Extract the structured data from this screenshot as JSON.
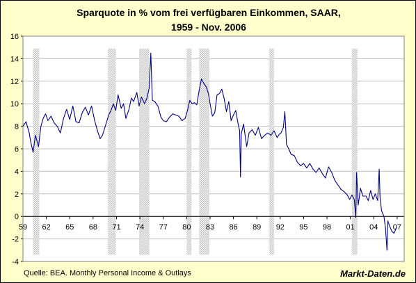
{
  "chart_data": {
    "type": "line",
    "title_line1": "Sparquote in % vom frei verfügbaren Einkommen, SAAR,",
    "title_line2": "1959 - Nov. 2006",
    "xlabel": "",
    "ylabel": "",
    "xlim": [
      1959,
      2007.9
    ],
    "ylim": [
      -4,
      16
    ],
    "y_ticks": [
      -4,
      -2,
      0,
      2,
      4,
      6,
      8,
      10,
      12,
      14,
      16
    ],
    "x_ticks": [
      {
        "year": 1959,
        "label": "59"
      },
      {
        "year": 1962,
        "label": "62"
      },
      {
        "year": 1965,
        "label": "65"
      },
      {
        "year": 1968,
        "label": "68"
      },
      {
        "year": 1971,
        "label": "71"
      },
      {
        "year": 1974,
        "label": "74"
      },
      {
        "year": 1977,
        "label": "77"
      },
      {
        "year": 1980,
        "label": "80"
      },
      {
        "year": 1983,
        "label": "83"
      },
      {
        "year": 1986,
        "label": "86"
      },
      {
        "year": 1989,
        "label": "89"
      },
      {
        "year": 1992,
        "label": "92"
      },
      {
        "year": 1995,
        "label": "95"
      },
      {
        "year": 1998,
        "label": "98"
      },
      {
        "year": 2001,
        "label": "01"
      },
      {
        "year": 2004,
        "label": "04"
      },
      {
        "year": 2007,
        "label": "07"
      }
    ],
    "grid": true,
    "recessions": [
      [
        1960.3,
        1961.1
      ],
      [
        1969.9,
        1970.9
      ],
      [
        1973.9,
        1975.2
      ],
      [
        1980.0,
        1980.6
      ],
      [
        1981.6,
        1982.9
      ],
      [
        1990.6,
        1991.2
      ],
      [
        2001.2,
        2001.9
      ]
    ],
    "series": [
      {
        "color": "#000080",
        "points": [
          [
            1959.0,
            8.0
          ],
          [
            1959.4,
            8.4
          ],
          [
            1959.8,
            7.4
          ],
          [
            1960.0,
            6.6
          ],
          [
            1960.3,
            5.7
          ],
          [
            1960.6,
            7.2
          ],
          [
            1961.0,
            6.2
          ],
          [
            1961.3,
            8.0
          ],
          [
            1961.6,
            8.7
          ],
          [
            1961.9,
            9.1
          ],
          [
            1962.2,
            8.5
          ],
          [
            1962.6,
            8.9
          ],
          [
            1963.0,
            8.3
          ],
          [
            1963.4,
            8.0
          ],
          [
            1963.8,
            7.4
          ],
          [
            1964.2,
            8.7
          ],
          [
            1964.6,
            9.5
          ],
          [
            1965.0,
            8.6
          ],
          [
            1965.4,
            9.8
          ],
          [
            1965.8,
            8.4
          ],
          [
            1966.2,
            8.3
          ],
          [
            1966.6,
            9.2
          ],
          [
            1967.0,
            9.7
          ],
          [
            1967.4,
            9.0
          ],
          [
            1967.8,
            9.8
          ],
          [
            1968.2,
            8.5
          ],
          [
            1968.6,
            7.5
          ],
          [
            1968.9,
            6.9
          ],
          [
            1969.2,
            7.2
          ],
          [
            1969.6,
            8.1
          ],
          [
            1970.0,
            9.0
          ],
          [
            1970.3,
            9.4
          ],
          [
            1970.6,
            10.0
          ],
          [
            1970.9,
            9.4
          ],
          [
            1971.2,
            10.8
          ],
          [
            1971.6,
            9.6
          ],
          [
            1971.9,
            10.0
          ],
          [
            1972.2,
            8.7
          ],
          [
            1972.6,
            9.5
          ],
          [
            1972.9,
            10.5
          ],
          [
            1973.2,
            10.2
          ],
          [
            1973.6,
            11.0
          ],
          [
            1973.9,
            9.8
          ],
          [
            1974.2,
            10.6
          ],
          [
            1974.6,
            10.0
          ],
          [
            1974.9,
            10.5
          ],
          [
            1975.2,
            11.4
          ],
          [
            1975.4,
            14.5
          ],
          [
            1975.6,
            10.3
          ],
          [
            1975.9,
            10.2
          ],
          [
            1976.3,
            9.8
          ],
          [
            1976.7,
            8.8
          ],
          [
            1977.0,
            8.5
          ],
          [
            1977.4,
            8.4
          ],
          [
            1977.8,
            8.8
          ],
          [
            1978.2,
            9.1
          ],
          [
            1978.6,
            9.0
          ],
          [
            1979.0,
            8.9
          ],
          [
            1979.4,
            8.5
          ],
          [
            1979.8,
            8.7
          ],
          [
            1980.1,
            9.4
          ],
          [
            1980.4,
            10.3
          ],
          [
            1980.7,
            10.0
          ],
          [
            1981.0,
            10.1
          ],
          [
            1981.3,
            9.9
          ],
          [
            1981.6,
            11.2
          ],
          [
            1981.9,
            12.2
          ],
          [
            1982.2,
            11.8
          ],
          [
            1982.5,
            11.5
          ],
          [
            1982.8,
            10.9
          ],
          [
            1983.0,
            10.0
          ],
          [
            1983.3,
            8.9
          ],
          [
            1983.6,
            9.2
          ],
          [
            1983.9,
            10.8
          ],
          [
            1984.2,
            10.9
          ],
          [
            1984.5,
            11.3
          ],
          [
            1984.8,
            10.5
          ],
          [
            1985.1,
            9.3
          ],
          [
            1985.4,
            10.2
          ],
          [
            1985.7,
            8.5
          ],
          [
            1986.0,
            9.0
          ],
          [
            1986.3,
            9.4
          ],
          [
            1986.6,
            8.2
          ],
          [
            1986.8,
            7.6
          ],
          [
            1986.9,
            3.5
          ],
          [
            1987.0,
            7.3
          ],
          [
            1987.3,
            8.2
          ],
          [
            1987.7,
            6.2
          ],
          [
            1988.0,
            7.4
          ],
          [
            1988.4,
            7.7
          ],
          [
            1988.8,
            7.2
          ],
          [
            1989.2,
            7.9
          ],
          [
            1989.6,
            6.9
          ],
          [
            1990.0,
            7.2
          ],
          [
            1990.4,
            7.4
          ],
          [
            1990.8,
            7.2
          ],
          [
            1991.2,
            7.6
          ],
          [
            1991.6,
            7.0
          ],
          [
            1991.9,
            7.3
          ],
          [
            1992.1,
            7.4
          ],
          [
            1992.4,
            7.9
          ],
          [
            1992.6,
            9.3
          ],
          [
            1992.8,
            6.4
          ],
          [
            1993.1,
            6.0
          ],
          [
            1993.4,
            5.5
          ],
          [
            1993.8,
            5.4
          ],
          [
            1994.2,
            4.8
          ],
          [
            1994.6,
            4.5
          ],
          [
            1995.0,
            4.7
          ],
          [
            1995.4,
            4.3
          ],
          [
            1995.8,
            4.7
          ],
          [
            1996.2,
            4.2
          ],
          [
            1996.6,
            3.9
          ],
          [
            1997.0,
            4.3
          ],
          [
            1997.4,
            3.8
          ],
          [
            1997.8,
            3.4
          ],
          [
            1998.2,
            4.4
          ],
          [
            1998.6,
            3.9
          ],
          [
            1999.0,
            3.2
          ],
          [
            1999.4,
            2.8
          ],
          [
            1999.8,
            2.4
          ],
          [
            2000.2,
            2.2
          ],
          [
            2000.6,
            1.9
          ],
          [
            2000.9,
            1.5
          ],
          [
            2001.2,
            1.9
          ],
          [
            2001.5,
            1.5
          ],
          [
            2001.7,
            -0.1
          ],
          [
            2001.8,
            3.9
          ],
          [
            2002.0,
            1.0
          ],
          [
            2002.3,
            2.5
          ],
          [
            2002.6,
            1.8
          ],
          [
            2003.0,
            1.8
          ],
          [
            2003.3,
            1.4
          ],
          [
            2003.6,
            2.3
          ],
          [
            2003.9,
            1.5
          ],
          [
            2004.2,
            2.0
          ],
          [
            2004.5,
            1.4
          ],
          [
            2004.7,
            4.2
          ],
          [
            2004.8,
            1.7
          ],
          [
            2005.0,
            0.5
          ],
          [
            2005.3,
            0.0
          ],
          [
            2005.5,
            -1.0
          ],
          [
            2005.7,
            -3.0
          ],
          [
            2005.8,
            -0.4
          ],
          [
            2006.0,
            -0.8
          ],
          [
            2006.3,
            -1.3
          ],
          [
            2006.6,
            -1.5
          ],
          [
            2006.9,
            -1.0
          ]
        ]
      }
    ]
  },
  "footer": {
    "source": "Quelle: BEA. Monthly Personal Income & Outlays",
    "brand": "Markt-Daten.de"
  },
  "colors": {
    "background": "#ffffcc",
    "plot_area": "#ffffff",
    "line": "#000080",
    "grid": "#c0c0c0",
    "recession": "#dddddd"
  }
}
